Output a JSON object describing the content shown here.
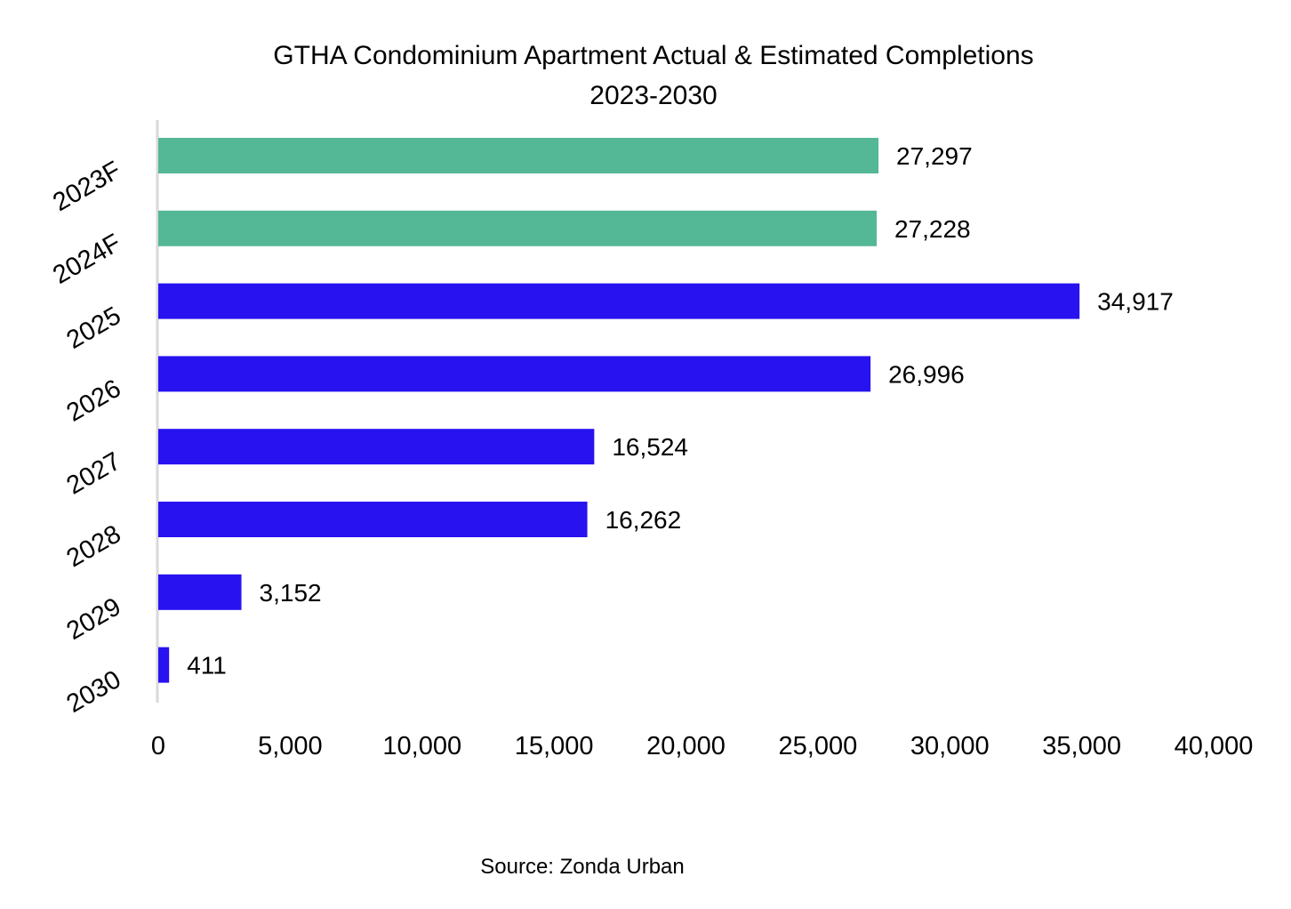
{
  "chart_data": {
    "type": "bar",
    "orientation": "horizontal",
    "title": "GTHA Condominium Apartment Actual & Estimated Completions",
    "subtitle": "2023-2030",
    "categories": [
      "2023F",
      "2024F",
      "2025",
      "2026",
      "2027",
      "2028",
      "2029",
      "2030"
    ],
    "values": [
      27297,
      27228,
      34917,
      26996,
      16524,
      16262,
      3152,
      411
    ],
    "data_labels": [
      "27,297",
      "27,228",
      "34,917",
      "26,996",
      "16,524",
      "16,262",
      "3,152",
      "411"
    ],
    "bar_colors": [
      "#54b795",
      "#54b795",
      "#2812f0",
      "#2812f0",
      "#2812f0",
      "#2812f0",
      "#2812f0",
      "#2812f0"
    ],
    "xlabel": "",
    "ylabel": "",
    "xlim": [
      0,
      40000
    ],
    "x_ticks": [
      0,
      5000,
      10000,
      15000,
      20000,
      25000,
      30000,
      35000,
      40000
    ],
    "x_tick_labels": [
      "0",
      "5,000",
      "10,000",
      "15,000",
      "20,000",
      "25,000",
      "30,000",
      "35,000",
      "40,000"
    ],
    "grid": false,
    "legend": "none",
    "source": "Source: Zonda Urban"
  }
}
